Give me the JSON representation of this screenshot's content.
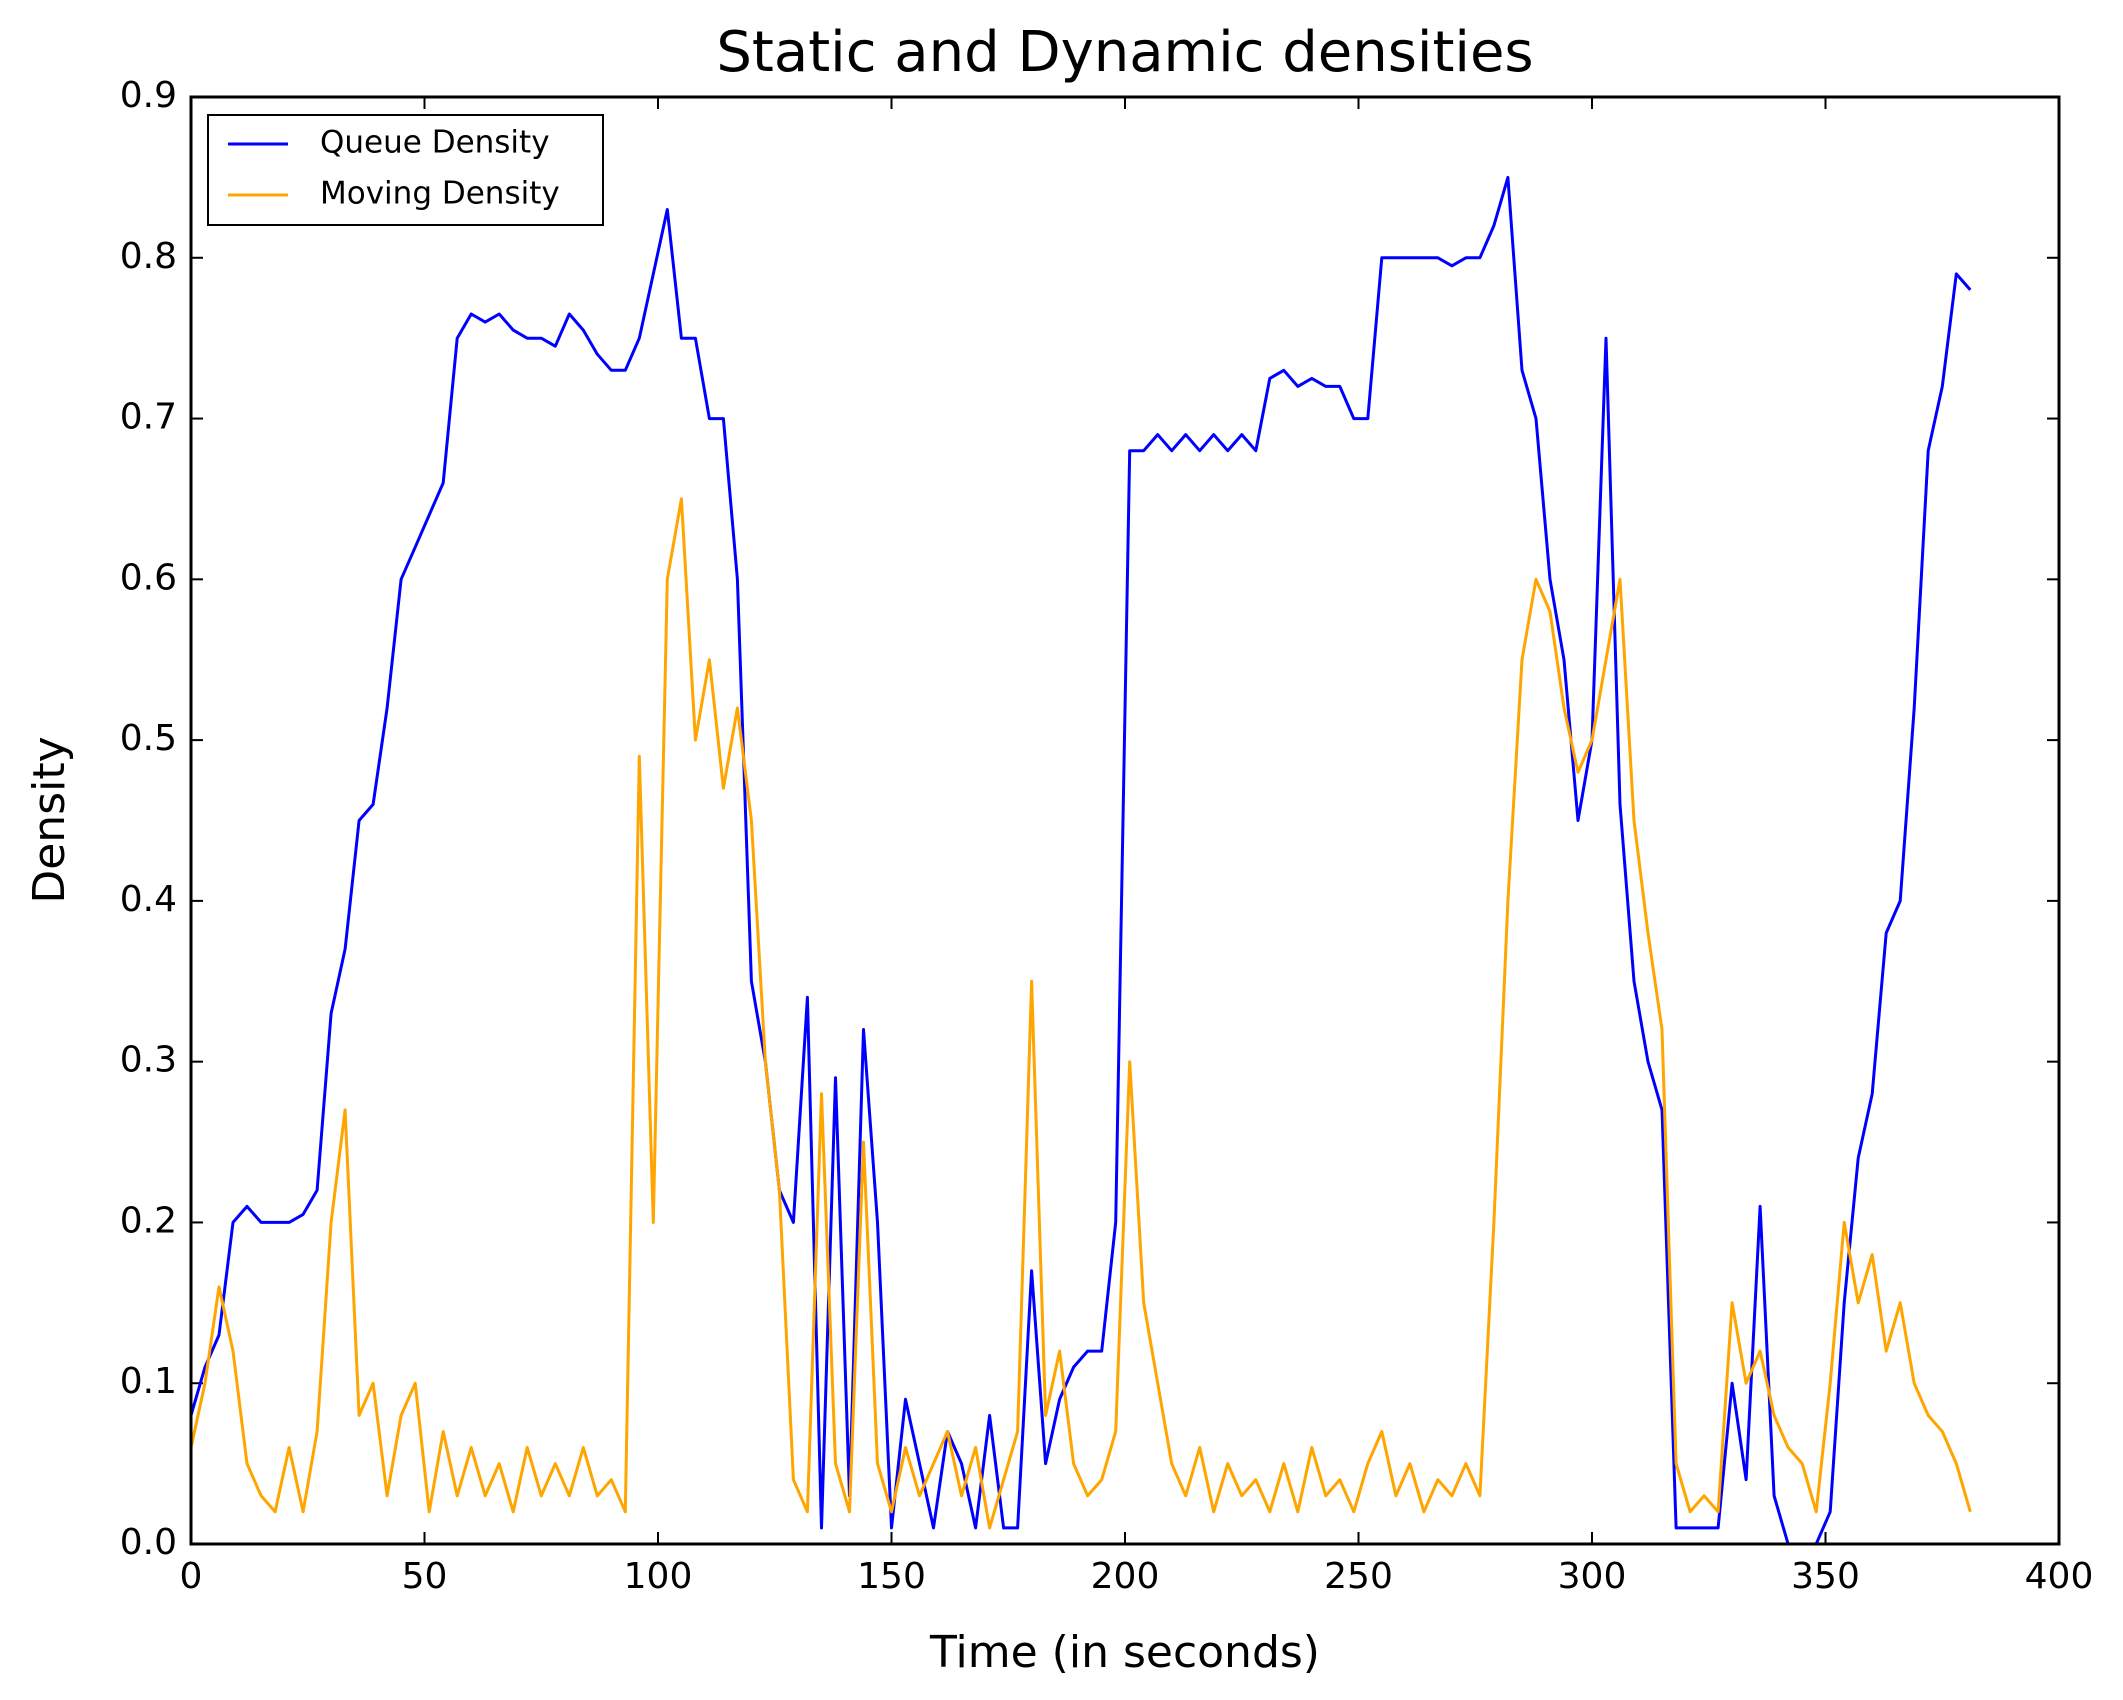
{
  "chart_data": {
    "type": "line",
    "title": "Static and Dynamic densities",
    "x_label": "Time (in seconds)",
    "y_label": "Density",
    "x": [
      0,
      3,
      6,
      9,
      12,
      15,
      18,
      21,
      24,
      27,
      30,
      33,
      36,
      39,
      42,
      45,
      48,
      51,
      54,
      57,
      60,
      63,
      66,
      69,
      72,
      75,
      78,
      81,
      84,
      87,
      90,
      93,
      96,
      99,
      102,
      105,
      108,
      111,
      114,
      117,
      120,
      123,
      126,
      129,
      132,
      135,
      138,
      141,
      144,
      147,
      150,
      153,
      156,
      159,
      162,
      165,
      168,
      171,
      174,
      177,
      180,
      183,
      186,
      189,
      192,
      195,
      198,
      201,
      204,
      207,
      210,
      213,
      216,
      219,
      222,
      225,
      228,
      231,
      234,
      237,
      240,
      243,
      246,
      249,
      252,
      255,
      258,
      261,
      264,
      267,
      270,
      273,
      276,
      279,
      282,
      285,
      288,
      291,
      294,
      297,
      300,
      303,
      306,
      309,
      312,
      315,
      318,
      321,
      324,
      327,
      330,
      333,
      336,
      339,
      342,
      345,
      348,
      351,
      354,
      357,
      360,
      363,
      366,
      369,
      372,
      375,
      378,
      381
    ],
    "series": [
      {
        "name": "Queue Density",
        "color": "#0000ff",
        "values": [
          0.08,
          0.11,
          0.13,
          0.2,
          0.21,
          0.2,
          0.2,
          0.2,
          0.205,
          0.22,
          0.33,
          0.37,
          0.45,
          0.46,
          0.52,
          0.6,
          0.62,
          0.64,
          0.66,
          0.75,
          0.765,
          0.76,
          0.765,
          0.755,
          0.75,
          0.75,
          0.745,
          0.765,
          0.755,
          0.74,
          0.73,
          0.73,
          0.75,
          0.79,
          0.83,
          0.75,
          0.75,
          0.7,
          0.7,
          0.6,
          0.35,
          0.3,
          0.22,
          0.2,
          0.34,
          0.01,
          0.29,
          0.03,
          0.32,
          0.2,
          0.01,
          0.09,
          0.05,
          0.01,
          0.07,
          0.05,
          0.01,
          0.08,
          0.01,
          0.01,
          0.17,
          0.05,
          0.09,
          0.11,
          0.12,
          0.12,
          0.2,
          0.68,
          0.68,
          0.69,
          0.68,
          0.69,
          0.68,
          0.69,
          0.68,
          0.69,
          0.68,
          0.725,
          0.73,
          0.72,
          0.725,
          0.72,
          0.72,
          0.7,
          0.7,
          0.8,
          0.8,
          0.8,
          0.8,
          0.8,
          0.795,
          0.8,
          0.8,
          0.82,
          0.85,
          0.73,
          0.7,
          0.6,
          0.55,
          0.45,
          0.5,
          0.75,
          0.46,
          0.35,
          0.3,
          0.27,
          0.01,
          0.01,
          0.01,
          0.01,
          0.1,
          0.04,
          0.21,
          0.03,
          0.0,
          0.0,
          0.0,
          0.02,
          0.15,
          0.24,
          0.28,
          0.38,
          0.4,
          0.52,
          0.68,
          0.72,
          0.79,
          0.78
        ]
      },
      {
        "name": "Moving Density",
        "color": "#ffa500",
        "values": [
          0.06,
          0.1,
          0.16,
          0.12,
          0.05,
          0.03,
          0.02,
          0.06,
          0.02,
          0.07,
          0.2,
          0.27,
          0.08,
          0.1,
          0.03,
          0.08,
          0.1,
          0.02,
          0.07,
          0.03,
          0.06,
          0.03,
          0.05,
          0.02,
          0.06,
          0.03,
          0.05,
          0.03,
          0.06,
          0.03,
          0.04,
          0.02,
          0.49,
          0.2,
          0.6,
          0.65,
          0.5,
          0.55,
          0.47,
          0.52,
          0.45,
          0.3,
          0.22,
          0.04,
          0.02,
          0.28,
          0.05,
          0.02,
          0.25,
          0.05,
          0.02,
          0.06,
          0.03,
          0.05,
          0.07,
          0.03,
          0.06,
          0.01,
          0.04,
          0.07,
          0.35,
          0.08,
          0.12,
          0.05,
          0.03,
          0.04,
          0.07,
          0.3,
          0.15,
          0.1,
          0.05,
          0.03,
          0.06,
          0.02,
          0.05,
          0.03,
          0.04,
          0.02,
          0.05,
          0.02,
          0.06,
          0.03,
          0.04,
          0.02,
          0.05,
          0.07,
          0.03,
          0.05,
          0.02,
          0.04,
          0.03,
          0.05,
          0.03,
          0.2,
          0.4,
          0.55,
          0.6,
          0.58,
          0.52,
          0.48,
          0.5,
          0.55,
          0.6,
          0.45,
          0.38,
          0.32,
          0.05,
          0.02,
          0.03,
          0.02,
          0.15,
          0.1,
          0.12,
          0.08,
          0.06,
          0.05,
          0.02,
          0.1,
          0.2,
          0.15,
          0.18,
          0.12,
          0.15,
          0.1,
          0.08,
          0.07,
          0.05,
          0.02
        ]
      }
    ],
    "xlim": [
      0,
      400
    ],
    "xticks": [
      0,
      50,
      100,
      150,
      200,
      250,
      300,
      350,
      400
    ],
    "ylim": [
      0,
      0.9
    ],
    "yticks": [
      {
        "value": 0,
        "label": "0.0"
      },
      0.1,
      0.2,
      0.3,
      0.4,
      0.5,
      0.6,
      0.7,
      0.8,
      0.9
    ],
    "grid": false,
    "legend": "upper left"
  }
}
